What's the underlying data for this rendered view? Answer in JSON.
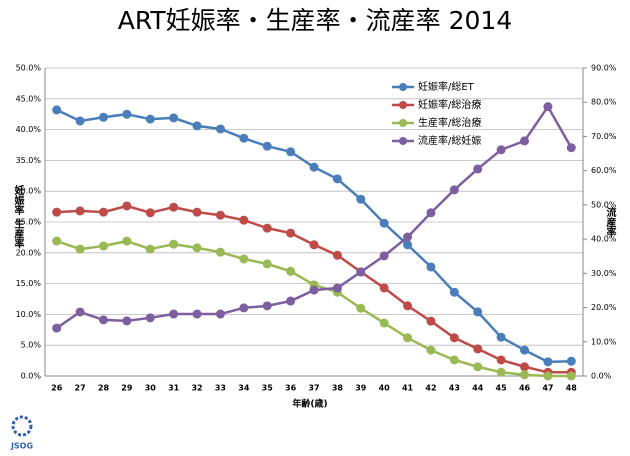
{
  "chart_data": {
    "type": "line",
    "title": "ART妊娠率・生産率・流産率  2014",
    "x_label": "年齢(歳)",
    "y_label": "妊娠率 生産率",
    "y2_label": "流産率",
    "logo": "JSOG",
    "categories": [
      "26",
      "27",
      "28",
      "29",
      "30",
      "31",
      "32",
      "33",
      "34",
      "35",
      "36",
      "37",
      "38",
      "39",
      "40",
      "41",
      "42",
      "43",
      "44",
      "45",
      "46",
      "47",
      "48"
    ],
    "ylim": [
      0,
      50
    ],
    "yticks": [
      {
        "value": 0,
        "label": "0.0%"
      },
      {
        "value": 5,
        "label": "5.0%"
      },
      {
        "value": 10,
        "label": "10.0%"
      },
      {
        "value": 15,
        "label": "15.0%"
      },
      {
        "value": 20,
        "label": "20.0%"
      },
      {
        "value": 25,
        "label": "25.0%"
      },
      {
        "value": 30,
        "label": "30.0%"
      },
      {
        "value": 35,
        "label": "35.0%"
      },
      {
        "value": 40,
        "label": "40.0%"
      },
      {
        "value": 45,
        "label": "45.0%"
      },
      {
        "value": 50,
        "label": "50.0%"
      }
    ],
    "y2lim": [
      0,
      90
    ],
    "y2ticks": [
      {
        "value": 0,
        "label": "0.0%"
      },
      {
        "value": 10,
        "label": "10.0%"
      },
      {
        "value": 20,
        "label": "20.0%"
      },
      {
        "value": 30,
        "label": "30.0%"
      },
      {
        "value": 40,
        "label": "40.0%"
      },
      {
        "value": 50,
        "label": "50.0%"
      },
      {
        "value": 60,
        "label": "60.0%"
      },
      {
        "value": 70,
        "label": "70.0%"
      },
      {
        "value": 80,
        "label": "80.0%"
      },
      {
        "value": 90,
        "label": "90.0%"
      }
    ],
    "grid": true,
    "legend": "top-right",
    "series": [
      {
        "name": "妊娠率/総ET",
        "color": "#4a7ebb",
        "values": [
          43.2,
          41.4,
          42.0,
          42.5,
          41.7,
          41.9,
          40.6,
          40.1,
          38.6,
          37.3,
          36.4,
          33.9,
          32.0,
          28.7,
          24.8,
          21.3,
          17.7,
          13.6,
          10.4,
          6.3,
          4.2,
          2.3,
          2.4
        ]
      },
      {
        "name": "妊娠率/総治療",
        "color": "#be4b48",
        "values": [
          26.6,
          26.8,
          26.6,
          27.6,
          26.5,
          27.4,
          26.6,
          26.1,
          25.3,
          24.0,
          23.2,
          21.3,
          19.6,
          16.9,
          14.3,
          11.4,
          8.9,
          6.2,
          4.4,
          2.6,
          1.5,
          0.6,
          0.6
        ]
      },
      {
        "name": "生産率/総治療",
        "color": "#98b954",
        "values": [
          21.9,
          20.6,
          21.1,
          21.9,
          20.6,
          21.4,
          20.8,
          20.1,
          19.0,
          18.2,
          17.0,
          14.8,
          13.6,
          11.0,
          8.6,
          6.2,
          4.2,
          2.6,
          1.5,
          0.6,
          0.2,
          0,
          0
        ]
      },
      {
        "name": "流産率/総妊娠",
        "color": "#7d5fa0",
        "axis": "y2",
        "values": [
          14.0,
          18.7,
          16.4,
          16.1,
          17.0,
          18.1,
          18.1,
          18.1,
          19.9,
          20.5,
          21.9,
          25.1,
          25.7,
          30.4,
          35.1,
          40.6,
          47.7,
          54.4,
          60.5,
          66.1,
          68.7,
          78.7,
          66.7
        ]
      }
    ]
  }
}
